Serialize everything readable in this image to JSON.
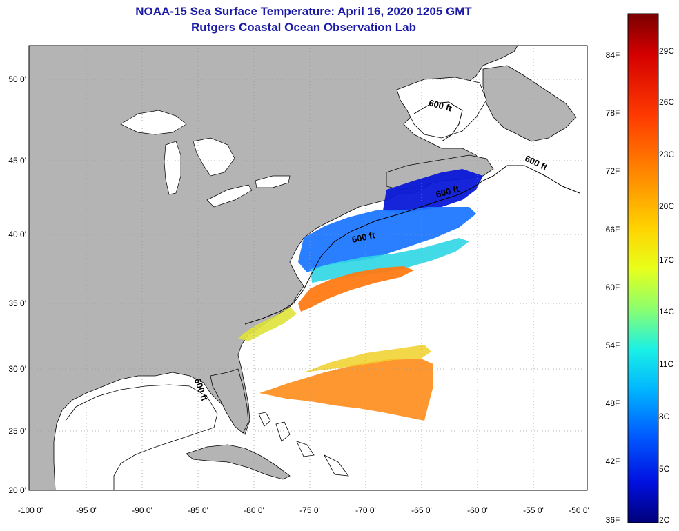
{
  "title": {
    "line1": "NOAA-15 Sea Surface Temperature:  April 16, 2020 1205 GMT",
    "line2": "Rutgers Coastal Ocean Observation Lab"
  },
  "map": {
    "latitude_labels": [
      "50 0'",
      "45 0'",
      "40 0'",
      "35 0'",
      "30 0'",
      "25 0'",
      "20 0'"
    ],
    "longitude_labels": [
      "-100 0'",
      "-95 0'",
      "-90 0'",
      "-85 0'",
      "-80 0'",
      "-75 0'",
      "-70 0'",
      "-65 0'",
      "-60 0'",
      "-55 0'",
      "-50 0'"
    ],
    "contour_labels": [
      "600 ft",
      "600 ft",
      "600 ft",
      "600 ft",
      "600 ft"
    ],
    "colors": {
      "land": "#b4b4b4",
      "ocean": "#ffffff",
      "grid": "#9a9a9a"
    }
  },
  "colorbar": {
    "fahrenheit_labels": [
      "84F",
      "78F",
      "72F",
      "66F",
      "60F",
      "54F",
      "48F",
      "42F",
      "36F"
    ],
    "celsius_labels": [
      "29C",
      "26C",
      "23C",
      "20C",
      "17C",
      "14C",
      "11C",
      "8C",
      "5C",
      "2C"
    ],
    "gradient": [
      "#7a0000",
      "#d40000",
      "#ff3a00",
      "#ff8c00",
      "#ffd200",
      "#e8ff1a",
      "#8cff6e",
      "#1af0e6",
      "#00b4ff",
      "#005aff",
      "#0010e0",
      "#00007a"
    ]
  }
}
